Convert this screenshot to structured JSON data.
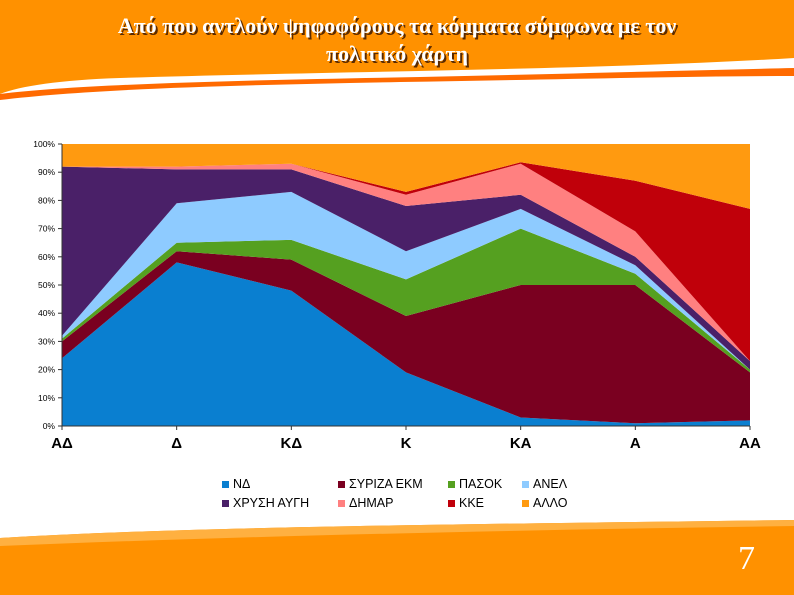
{
  "slide": {
    "title_line1": "Από που αντλούν ψηφοφόρους τα κόμματα σύμφωνα με τον",
    "title_line2": "πολιτικό χάρτη",
    "page_number": "7",
    "accent": "#ff9100"
  },
  "chart_data": {
    "type": "area",
    "stacked": "percent",
    "categories": [
      "ΑΔ",
      "Δ",
      "ΚΔ",
      "Κ",
      "ΚΑ",
      "Α",
      "ΑΑ"
    ],
    "ylim": [
      0,
      100
    ],
    "yticks": [
      "0%",
      "10%",
      "20%",
      "30%",
      "40%",
      "50%",
      "60%",
      "70%",
      "80%",
      "90%",
      "100%"
    ],
    "legend_position": "bottom",
    "series": [
      {
        "name": "ΝΔ",
        "color": "#0a7fd0",
        "values": [
          24,
          58,
          48,
          19,
          3,
          1,
          2
        ]
      },
      {
        "name": "ΣΥΡΙΖΑ ΕΚΜ",
        "color": "#7a0020",
        "values": [
          6,
          4,
          11,
          20,
          47,
          49,
          17
        ]
      },
      {
        "name": "ΠΑΣΟΚ",
        "color": "#55a020",
        "values": [
          1,
          3,
          7,
          13,
          20,
          4,
          1
        ]
      },
      {
        "name": "ΑΝΕΛ",
        "color": "#8ecbff",
        "values": [
          1,
          14,
          17,
          10,
          7,
          3,
          0
        ]
      },
      {
        "name": "ΧΡΥΣΗ ΑΥΓΗ",
        "color": "#4a2068",
        "values": [
          60,
          12,
          8,
          16,
          5,
          3,
          3
        ]
      },
      {
        "name": "ΔΗΜΑΡ",
        "color": "#ff8080",
        "values": [
          0,
          1,
          2,
          4,
          11,
          9,
          0
        ]
      },
      {
        "name": "ΚΚΕ",
        "color": "#c0000a",
        "values": [
          0,
          0,
          0,
          1,
          0.5,
          18,
          54
        ]
      },
      {
        "name": "ΑΛΛΟ",
        "color": "#ff9a10",
        "values": [
          8,
          8,
          7,
          17,
          6.5,
          13,
          23
        ]
      }
    ]
  }
}
